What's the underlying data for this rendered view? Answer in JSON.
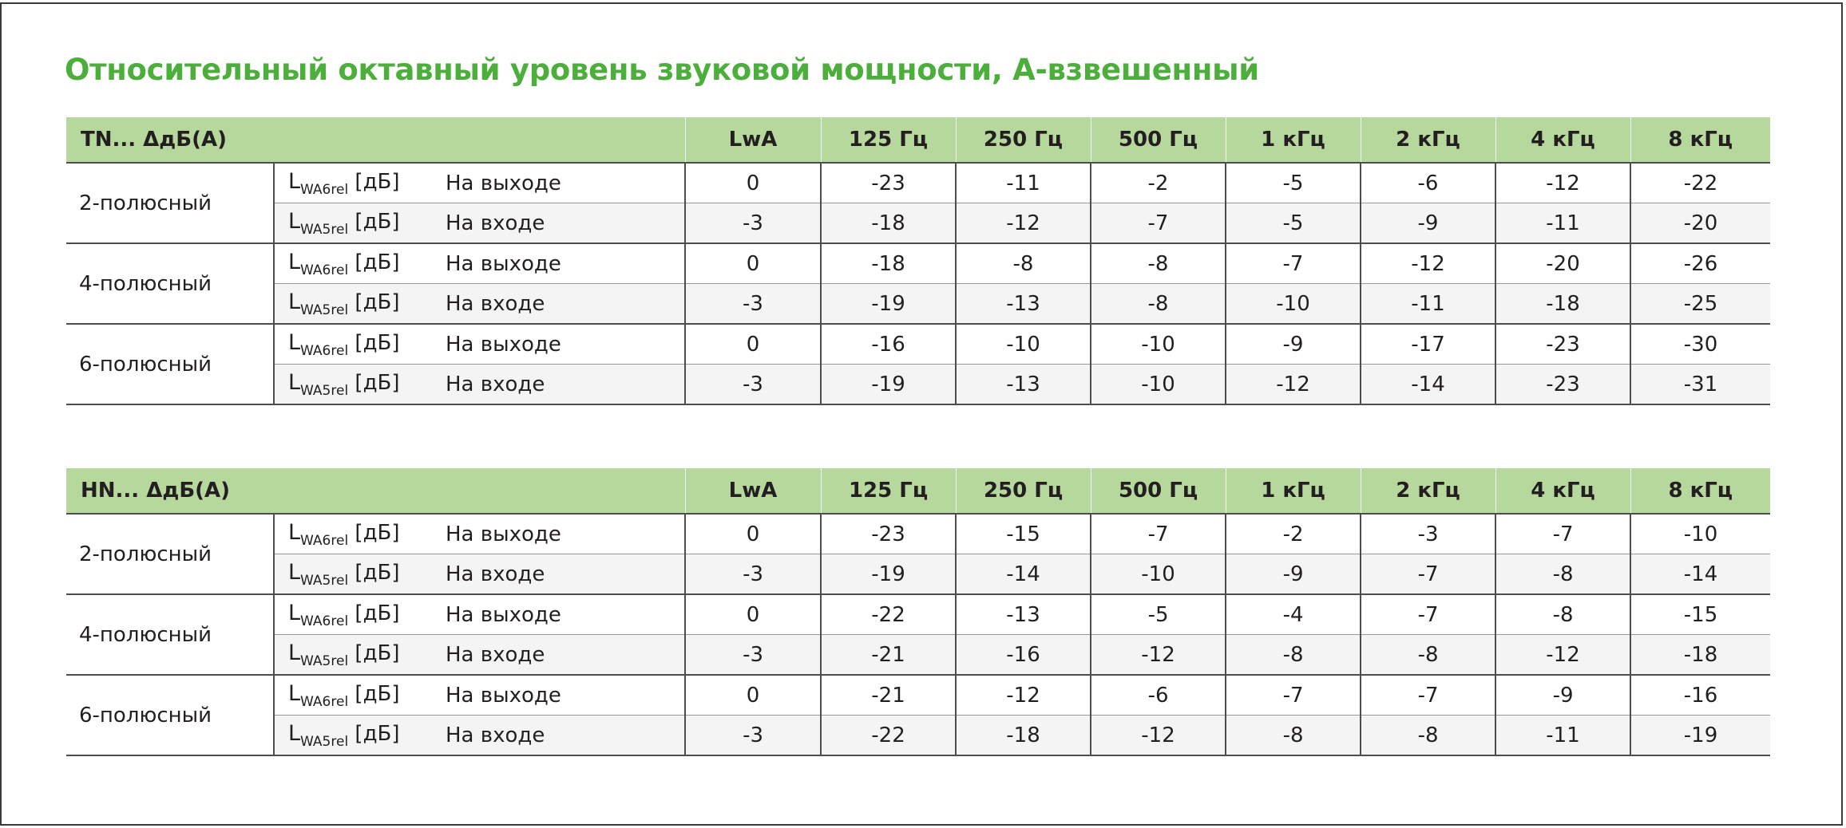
{
  "title": "Относительный октавный уровень звуковой мощности, А-взвешенный",
  "columns": [
    "LwA",
    "125 Гц",
    "250 Гц",
    "500 Гц",
    "1 кГц",
    "2 кГц",
    "4 кГц",
    "8 кГц"
  ],
  "level_label": {
    "base": "L",
    "out_sub": "WA6rel",
    "in_sub": "WA5rel",
    "unit": " [дБ]"
  },
  "side_labels": {
    "out": "На выходе",
    "in": "На входе"
  },
  "tables": [
    {
      "header": "TN... ΔдБ(A)",
      "groups": [
        {
          "pole": "2-полюсный",
          "out": [
            "0",
            "-23",
            "-11",
            "-2",
            "-5",
            "-6",
            "-12",
            "-22"
          ],
          "in": [
            "-3",
            "-18",
            "-12",
            "-7",
            "-5",
            "-9",
            "-11",
            "-20"
          ]
        },
        {
          "pole": "4-полюсный",
          "out": [
            "0",
            "-18",
            "-8",
            "-8",
            "-7",
            "-12",
            "-20",
            "-26"
          ],
          "in": [
            "-3",
            "-19",
            "-13",
            "-8",
            "-10",
            "-11",
            "-18",
            "-25"
          ]
        },
        {
          "pole": "6-полюсный",
          "out": [
            "0",
            "-16",
            "-10",
            "-10",
            "-9",
            "-17",
            "-23",
            "-30"
          ],
          "in": [
            "-3",
            "-19",
            "-13",
            "-10",
            "-12",
            "-14",
            "-23",
            "-31"
          ]
        }
      ]
    },
    {
      "header": "HN... ΔдБ(A)",
      "groups": [
        {
          "pole": "2-полюсный",
          "out": [
            "0",
            "-23",
            "-15",
            "-7",
            "-2",
            "-3",
            "-7",
            "-10"
          ],
          "in": [
            "-3",
            "-19",
            "-14",
            "-10",
            "-9",
            "-7",
            "-8",
            "-14"
          ]
        },
        {
          "pole": "4-полюсный",
          "out": [
            "0",
            "-22",
            "-13",
            "-5",
            "-4",
            "-7",
            "-8",
            "-15"
          ],
          "in": [
            "-3",
            "-21",
            "-16",
            "-12",
            "-8",
            "-8",
            "-12",
            "-18"
          ]
        },
        {
          "pole": "6-полюсный",
          "out": [
            "0",
            "-21",
            "-12",
            "-6",
            "-7",
            "-7",
            "-9",
            "-16"
          ],
          "in": [
            "-3",
            "-22",
            "-18",
            "-12",
            "-8",
            "-8",
            "-11",
            "-19"
          ]
        }
      ]
    }
  ]
}
